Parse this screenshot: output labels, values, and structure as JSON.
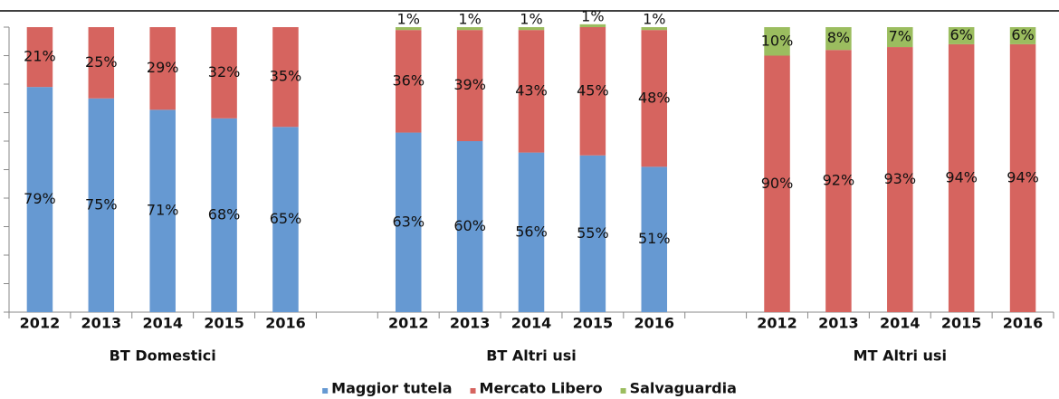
{
  "chart_data": {
    "type": "stacked_bar",
    "categories": [
      "2012",
      "2013",
      "2014",
      "2015",
      "2016",
      null,
      "2012",
      "2013",
      "2014",
      "2015",
      "2016",
      null,
      "2012",
      "2013",
      "2014",
      "2015",
      "2016"
    ],
    "group_labels": [
      "BT Domestici",
      "BT Altri usi",
      "MT Altri usi"
    ],
    "series": [
      {
        "name": "Maggior tutela",
        "color": "#6699d2",
        "values": [
          79,
          75,
          71,
          68,
          65,
          null,
          63,
          60,
          56,
          55,
          51,
          null,
          null,
          null,
          null,
          null,
          null
        ],
        "value_labels": [
          "79%",
          "75%",
          "71%",
          "68%",
          "65%",
          null,
          "63%",
          "60%",
          "56%",
          "55%",
          "51%",
          null,
          null,
          null,
          null,
          null,
          null
        ]
      },
      {
        "name": "Mercato Libero",
        "color": "#d6645f",
        "values": [
          21,
          25,
          29,
          32,
          35,
          null,
          36,
          39,
          43,
          45,
          48,
          null,
          90,
          92,
          93,
          94,
          94
        ],
        "value_labels": [
          "21%",
          "25%",
          "29%",
          "32%",
          "35%",
          null,
          "36%",
          "39%",
          "43%",
          "45%",
          "48%",
          null,
          "90%",
          "92%",
          "93%",
          "94%",
          "94%"
        ]
      },
      {
        "name": "Salvaguardia",
        "color": "#9bbd5f",
        "values": [
          null,
          null,
          null,
          null,
          null,
          null,
          1,
          1,
          1,
          1,
          1,
          null,
          10,
          8,
          7,
          6,
          6
        ],
        "value_labels": [
          null,
          null,
          null,
          null,
          null,
          null,
          "1%",
          "1%",
          "1%",
          "1%",
          "1%",
          null,
          "10%",
          "8%",
          "7%",
          "6%",
          "6%"
        ]
      }
    ],
    "ylim": [
      0,
      100
    ],
    "yticks": [
      0,
      10,
      20,
      30,
      40,
      50,
      60,
      70,
      80,
      90,
      100
    ],
    "legend": "bottom"
  }
}
